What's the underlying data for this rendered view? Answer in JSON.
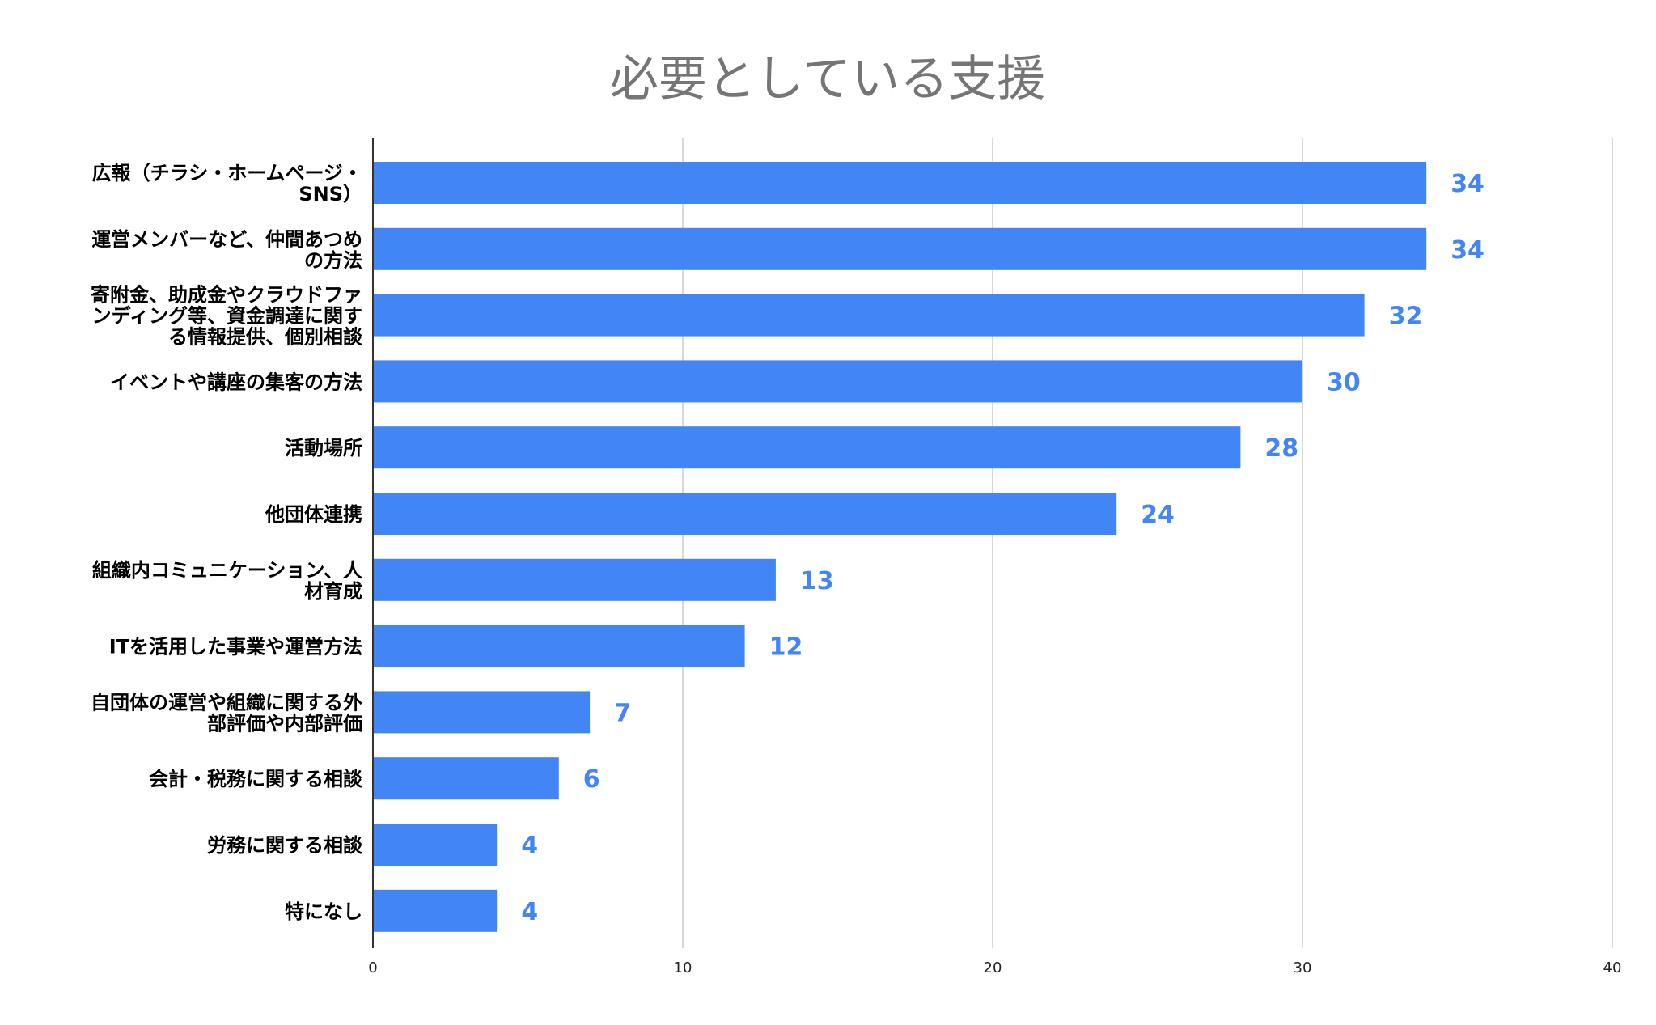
{
  "chart_data": {
    "type": "bar",
    "orientation": "horizontal",
    "title": "必要としている支援",
    "categories": [
      [
        "広報（チラシ・ホームページ・",
        "SNS）"
      ],
      [
        "運営メンバーなど、仲間あつめ",
        "の方法"
      ],
      [
        "寄附金、助成金やクラウドファ",
        "ンディング等、資金調達に関す",
        "る情報提供、個別相談"
      ],
      [
        "イベントや講座の集客の方法"
      ],
      [
        "活動場所"
      ],
      [
        "他団体連携"
      ],
      [
        "組織内コミュニケーション、人",
        "材育成"
      ],
      [
        "ITを活用した事業や運営方法"
      ],
      [
        "自団体の運営や組織に関する外",
        "部評価や内部評価"
      ],
      [
        "会計・税務に関する相談"
      ],
      [
        "労務に関する相談"
      ],
      [
        "特になし"
      ]
    ],
    "values": [
      34,
      34,
      32,
      30,
      28,
      24,
      13,
      12,
      7,
      6,
      4,
      4
    ],
    "xlim": [
      0,
      40
    ],
    "xticks": [
      0,
      10,
      20,
      30,
      40
    ],
    "grid": true,
    "legend": "none",
    "xlabel": "",
    "ylabel": "",
    "colors": {
      "bar": "#4285f4",
      "data_label": "#4285f4",
      "title": "#757575",
      "grid": "#cccccc"
    }
  }
}
